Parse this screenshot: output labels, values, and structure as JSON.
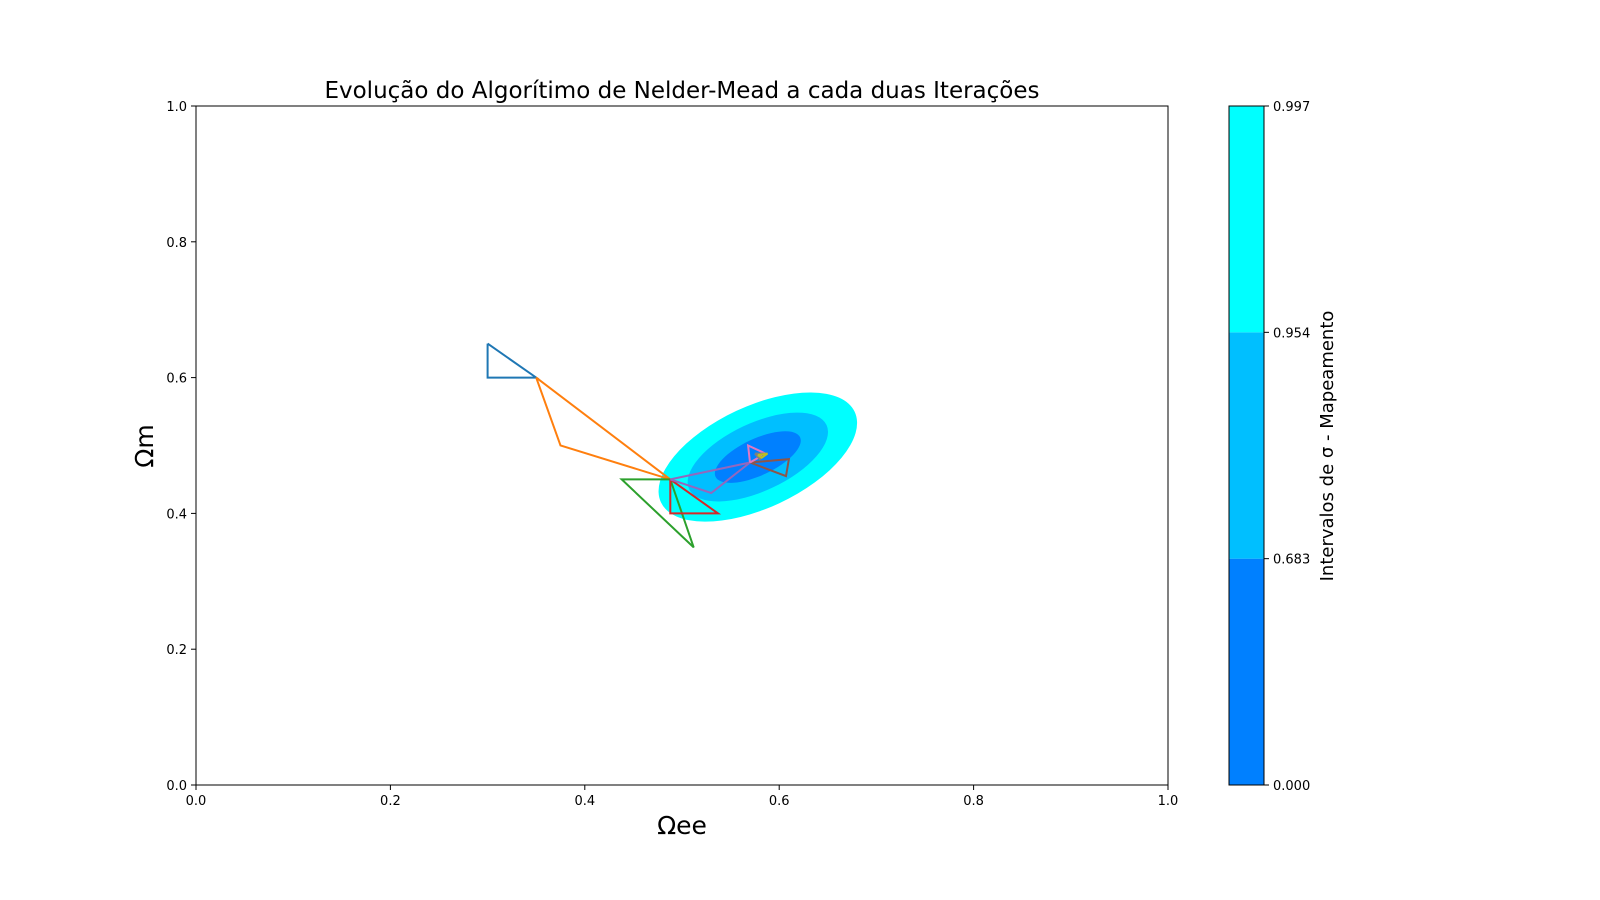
{
  "chart_data": {
    "type": "line",
    "title": "Evolução do Algorítimo de Nelder-Mead a cada duas Iterações",
    "xlabel": "Ωee",
    "ylabel": "Ωm",
    "xlim": [
      0.0,
      1.0
    ],
    "ylim": [
      0.0,
      1.0
    ],
    "x_ticks": [
      "0.0",
      "0.2",
      "0.4",
      "0.6",
      "0.8",
      "1.0"
    ],
    "y_ticks": [
      "0.0",
      "0.2",
      "0.4",
      "0.6",
      "0.8",
      "1.0"
    ],
    "grid": false,
    "contour": {
      "center": [
        0.578,
        0.483
      ],
      "angle_deg": 25,
      "levels": [
        {
          "sigma": 0.997,
          "semi_major": 0.11,
          "semi_minor": 0.075,
          "color": "#00ffff"
        },
        {
          "sigma": 0.954,
          "semi_major": 0.078,
          "semi_minor": 0.05,
          "color": "#00bfff"
        },
        {
          "sigma": 0.683,
          "semi_major": 0.048,
          "semi_minor": 0.027,
          "color": "#0080ff"
        }
      ]
    },
    "series": [
      {
        "color": "#1f77b4",
        "points": [
          [
            0.3,
            0.65
          ],
          [
            0.35,
            0.6
          ],
          [
            0.3,
            0.6
          ],
          [
            0.3,
            0.65
          ]
        ]
      },
      {
        "color": "#ff7f0e",
        "points": [
          [
            0.35,
            0.6
          ],
          [
            0.375,
            0.5
          ],
          [
            0.488,
            0.45
          ],
          [
            0.35,
            0.6
          ]
        ]
      },
      {
        "color": "#2ca02c",
        "points": [
          [
            0.488,
            0.45
          ],
          [
            0.438,
            0.45
          ],
          [
            0.512,
            0.35
          ],
          [
            0.488,
            0.45
          ]
        ]
      },
      {
        "color": "#d62728",
        "points": [
          [
            0.488,
            0.45
          ],
          [
            0.488,
            0.4
          ],
          [
            0.537,
            0.4
          ],
          [
            0.488,
            0.45
          ]
        ]
      },
      {
        "color": "#9467bd",
        "points": [
          [
            0.488,
            0.45
          ],
          [
            0.53,
            0.43
          ],
          [
            0.57,
            0.475
          ],
          [
            0.488,
            0.45
          ]
        ]
      },
      {
        "color": "#8c564b",
        "points": [
          [
            0.57,
            0.475
          ],
          [
            0.61,
            0.48
          ],
          [
            0.607,
            0.455
          ],
          [
            0.57,
            0.475
          ]
        ]
      },
      {
        "color": "#e377c2",
        "points": [
          [
            0.57,
            0.475
          ],
          [
            0.568,
            0.5
          ],
          [
            0.586,
            0.488
          ],
          [
            0.57,
            0.475
          ]
        ]
      },
      {
        "color": "#7f7f7f",
        "points": [
          [
            0.575,
            0.488
          ],
          [
            0.586,
            0.488
          ],
          [
            0.58,
            0.48
          ],
          [
            0.575,
            0.488
          ]
        ]
      },
      {
        "color": "#bcbd22",
        "points": [
          [
            0.578,
            0.486
          ],
          [
            0.588,
            0.488
          ],
          [
            0.582,
            0.482
          ],
          [
            0.578,
            0.486
          ]
        ]
      }
    ],
    "colorbar": {
      "label": "Intervalos de σ - Mapeamento",
      "ticks": [
        "0.000",
        "0.683",
        "0.954",
        "0.997"
      ],
      "bands": [
        {
          "from": 0.0,
          "to": 0.683,
          "color": "#0080ff"
        },
        {
          "from": 0.683,
          "to": 0.954,
          "color": "#00bfff"
        },
        {
          "from": 0.954,
          "to": 0.997,
          "color": "#00ffff"
        }
      ]
    }
  }
}
